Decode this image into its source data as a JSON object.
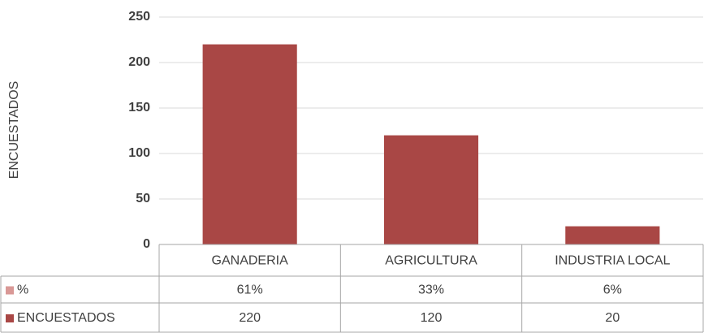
{
  "chart_data": {
    "type": "bar",
    "ylabel": "ENCUESTADOS",
    "categories": [
      "GANADERIA",
      "AGRICULTURA",
      "INDUSTRIA LOCAL"
    ],
    "series": [
      {
        "name": "%",
        "color": "#d99896",
        "values": [
          0.61,
          0.33,
          0.06
        ],
        "value_labels": [
          "61%",
          "33%",
          "6%"
        ]
      },
      {
        "name": "ENCUESTADOS",
        "color": "#a94745",
        "values": [
          220,
          120,
          20
        ]
      }
    ],
    "ylim": [
      0,
      250
    ],
    "yticks": [
      0,
      50,
      100,
      150,
      200,
      250
    ],
    "grid": true
  }
}
